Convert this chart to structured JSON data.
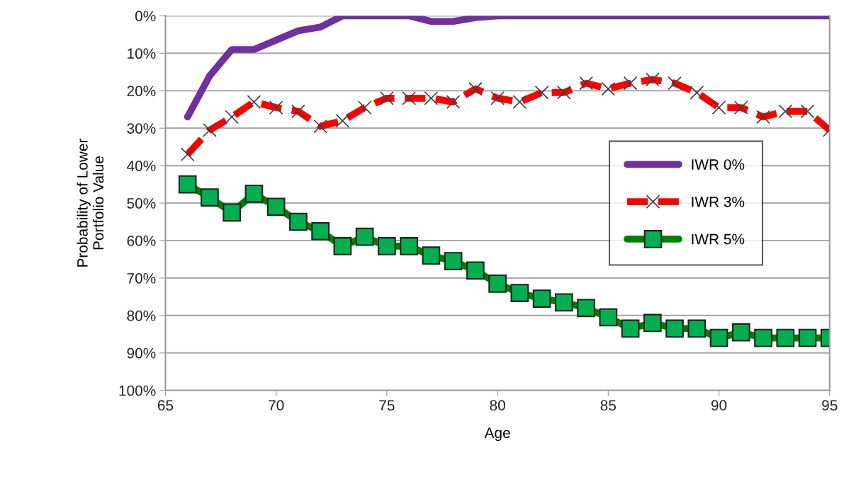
{
  "chart_data": {
    "type": "line",
    "xlabel": "Age",
    "ylabel": "Probability of Lower\nPortfolio Value",
    "x": [
      66,
      67,
      68,
      69,
      70,
      71,
      72,
      73,
      74,
      75,
      76,
      77,
      78,
      79,
      80,
      81,
      82,
      83,
      84,
      85,
      86,
      87,
      88,
      89,
      90,
      91,
      92,
      93,
      94,
      95
    ],
    "series": [
      {
        "name": "IWR 0%",
        "color": "#7030a0",
        "marker": "none",
        "line_style": "solid",
        "values": [
          27,
          16,
          9,
          9,
          6.5,
          4,
          3,
          0,
          0,
          0,
          0,
          1.5,
          1.5,
          0.5,
          0,
          0,
          0,
          0,
          0,
          0,
          0,
          0,
          0,
          0,
          0,
          0,
          0,
          0,
          0,
          0
        ]
      },
      {
        "name": "IWR 3%",
        "color": "#ff0000",
        "marker": "cross",
        "line_style": "dashed",
        "values": [
          37,
          30.5,
          27,
          23,
          24.5,
          25.5,
          29.5,
          28,
          24.5,
          22,
          22,
          22,
          23,
          19.5,
          22,
          23,
          20.5,
          20.5,
          18,
          19.5,
          18,
          17,
          18,
          20.5,
          24.5,
          24.5,
          27,
          25.5,
          25.5,
          30.5
        ]
      },
      {
        "name": "IWR 5%",
        "color": "#008000",
        "marker": "square",
        "line_style": "solid",
        "values": [
          45,
          48.5,
          52.5,
          47.5,
          51,
          55,
          57.5,
          61.5,
          59,
          61.5,
          61.5,
          64,
          65.5,
          68,
          71.5,
          74,
          75.5,
          76.5,
          78,
          80.5,
          83.5,
          82,
          83.5,
          83.5,
          86,
          84.5,
          86,
          86,
          86,
          86
        ]
      }
    ],
    "xlim": [
      65,
      95
    ],
    "xticks": [
      65,
      70,
      75,
      80,
      85,
      90,
      95
    ],
    "ylim": [
      100,
      0
    ],
    "yticks": [
      {
        "value": 0,
        "label": "0%"
      },
      {
        "value": 10,
        "label": "10%"
      },
      {
        "value": 20,
        "label": "20%"
      },
      {
        "value": 30,
        "label": "30%"
      },
      {
        "value": 40,
        "label": "40%"
      },
      {
        "value": 50,
        "label": "50%"
      },
      {
        "value": 60,
        "label": "60%"
      },
      {
        "value": 70,
        "label": "70%"
      },
      {
        "value": 80,
        "label": "80%"
      },
      {
        "value": 90,
        "label": "90%"
      },
      {
        "value": 100,
        "label": "100%"
      }
    ],
    "grid": "y",
    "legend": "right"
  }
}
